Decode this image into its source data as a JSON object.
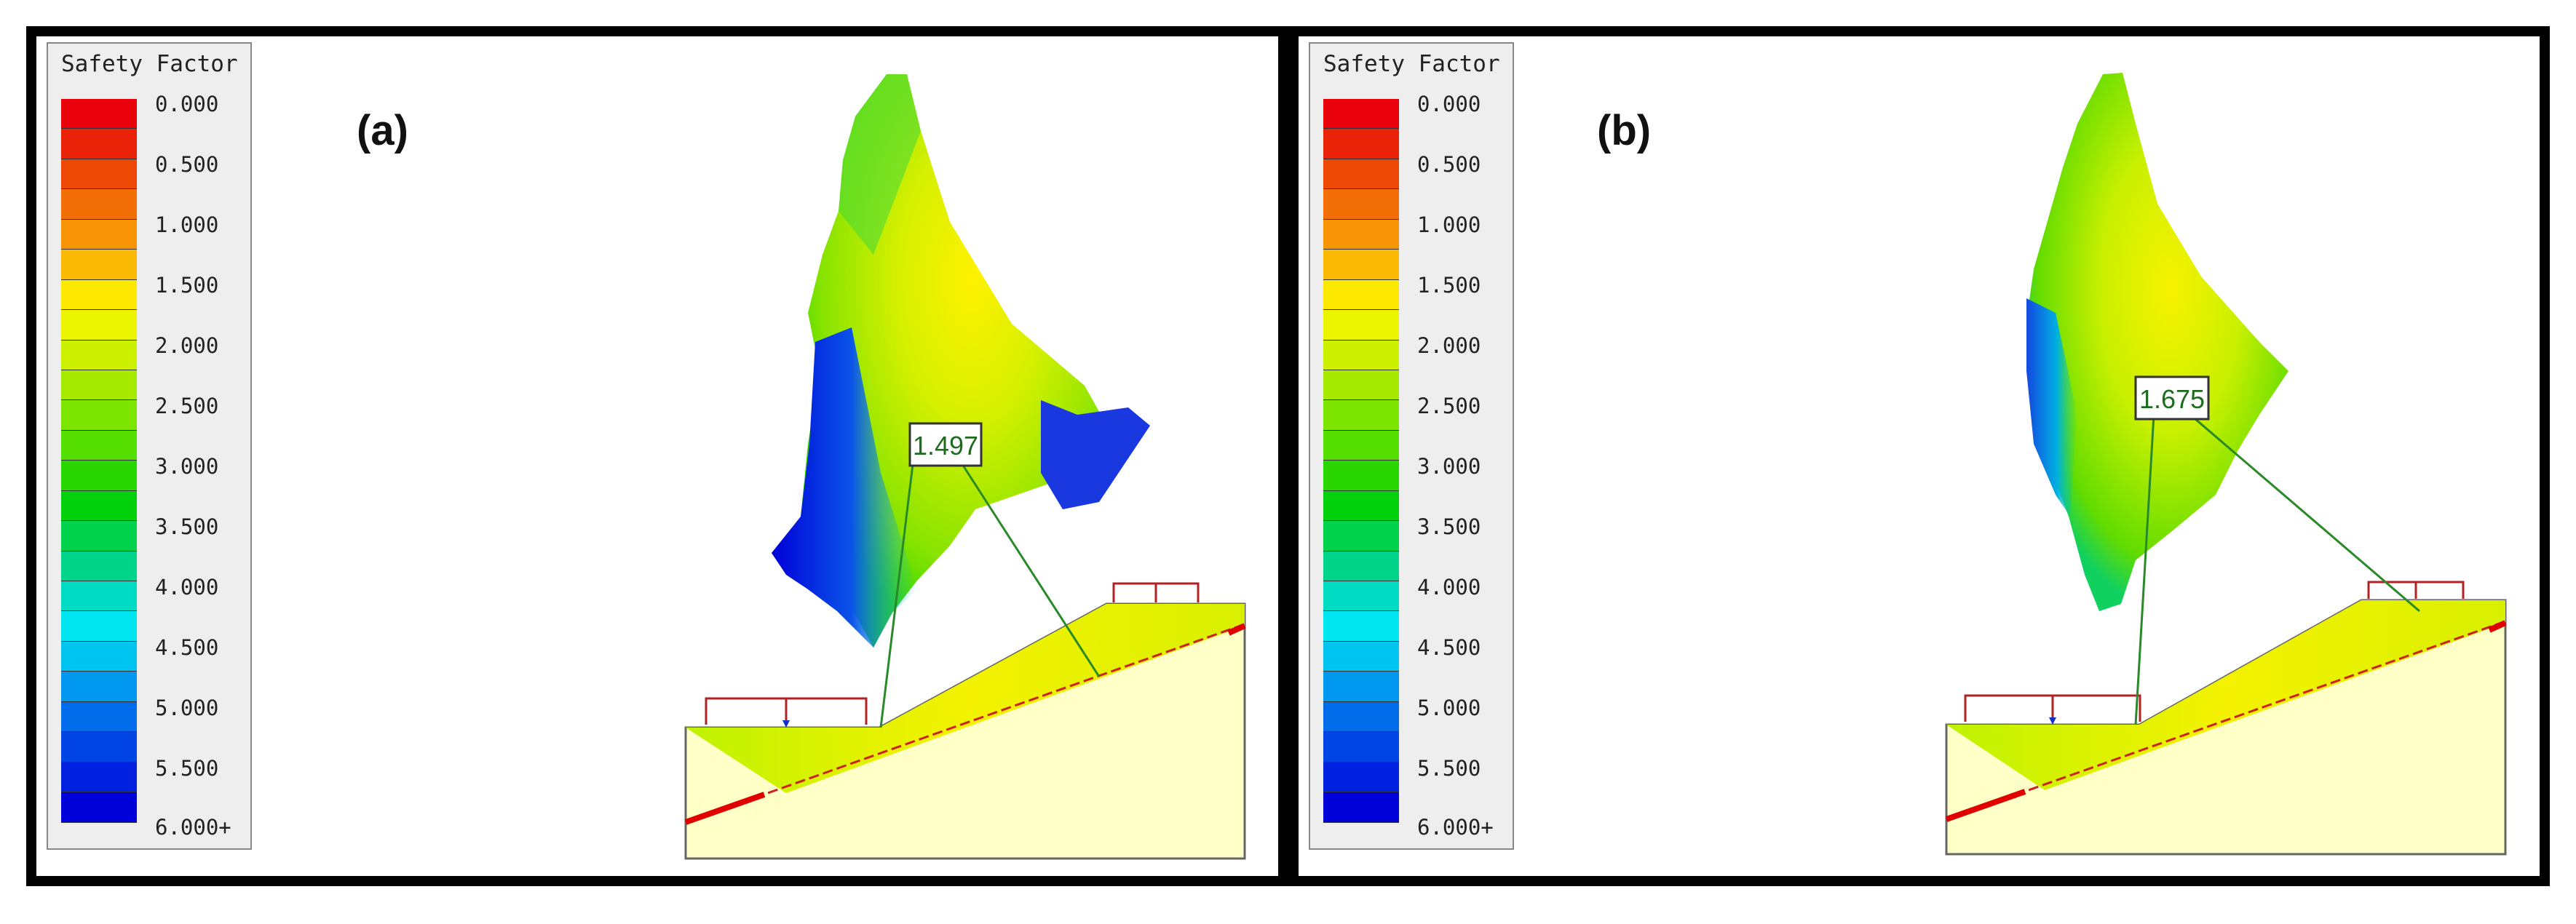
{
  "legend": {
    "title": "Safety Factor",
    "colors": [
      "#e8000a",
      "#ea2208",
      "#ee4807",
      "#f26e06",
      "#f79405",
      "#fbbb04",
      "#fde800",
      "#ecf500",
      "#cbf000",
      "#a6ea00",
      "#7ee500",
      "#55df00",
      "#2ad600",
      "#02d10c",
      "#00d24c",
      "#00d48a",
      "#00dcc4",
      "#00e6f0",
      "#00c4f0",
      "#0098ee",
      "#006cea",
      "#0044e6",
      "#0020df",
      "#0000d8"
    ],
    "labels": [
      "0.000",
      "0.500",
      "1.000",
      "1.500",
      "2.000",
      "2.500",
      "3.000",
      "3.500",
      "4.000",
      "4.500",
      "5.000",
      "5.500",
      "6.000+"
    ]
  },
  "panels": [
    {
      "label": "(a)",
      "min_fs": "1.497"
    },
    {
      "label": "(b)",
      "min_fs": "1.675"
    }
  ]
}
